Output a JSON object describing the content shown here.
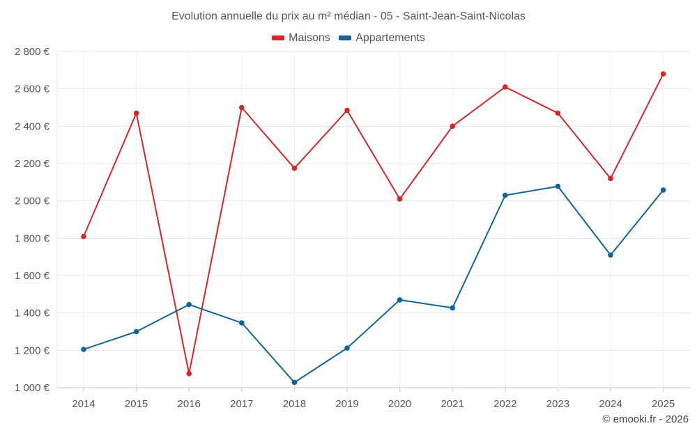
{
  "chart_data": {
    "type": "line",
    "title": "Evolution annuelle du prix au m² médian - 05 - Saint-Jean-Saint-Nicolas",
    "categories": [
      "2014",
      "2015",
      "2016",
      "2017",
      "2018",
      "2019",
      "2020",
      "2021",
      "2022",
      "2023",
      "2024",
      "2025"
    ],
    "series": [
      {
        "name": "Maisons",
        "color": "#d62728",
        "values": [
          1810,
          2470,
          1075,
          2500,
          2175,
          2485,
          2010,
          2400,
          2610,
          2470,
          2120,
          2680
        ]
      },
      {
        "name": "Appartements",
        "color": "#10649a",
        "values": [
          1205,
          1300,
          1445,
          1347,
          1028,
          1212,
          1470,
          1427,
          2030,
          2078,
          1710,
          2058
        ]
      }
    ],
    "ylim": [
      1000,
      2800
    ],
    "yticks": [
      1000,
      1200,
      1400,
      1600,
      1800,
      2000,
      2200,
      2400,
      2600,
      2800
    ],
    "ytick_labels": [
      "1 000 €",
      "1 200 €",
      "1 400 €",
      "1 600 €",
      "1 800 €",
      "2 000 €",
      "2 200 €",
      "2 400 €",
      "2 600 €",
      "2 800 €"
    ],
    "xlabel": "",
    "ylabel": "",
    "grid": true,
    "legend_position": "top-center"
  },
  "credit": "© emooki.fr - 2026"
}
